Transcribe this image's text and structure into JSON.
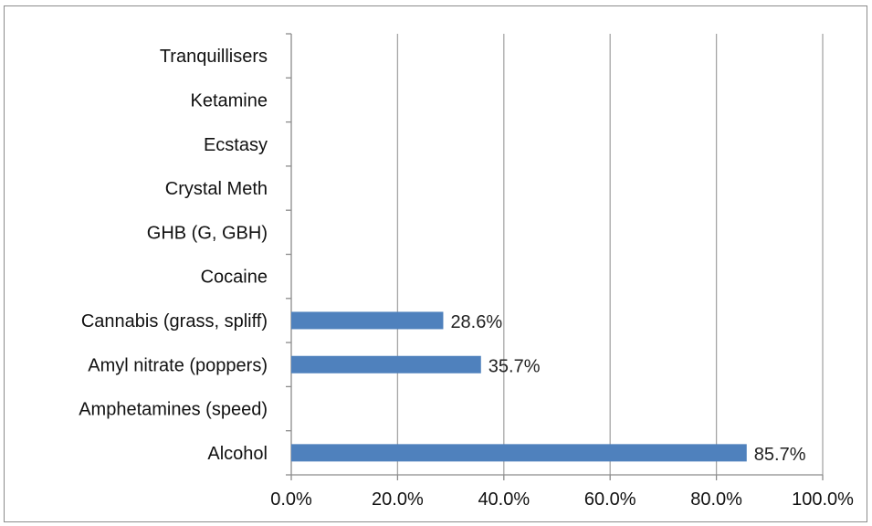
{
  "chart_data": {
    "type": "bar",
    "orientation": "horizontal",
    "categories": [
      "Alcohol",
      "Amphetamines (speed)",
      "Amyl nitrate (poppers)",
      "Cannabis (grass, spliff)",
      "Cocaine",
      "GHB (G, GBH)",
      "Crystal Meth",
      "Ecstasy",
      "Ketamine",
      "Tranquillisers"
    ],
    "values": [
      85.7,
      0,
      35.7,
      28.6,
      0,
      0,
      0,
      0,
      0,
      0
    ],
    "data_labels": [
      "85.7%",
      "",
      "35.7%",
      "28.6%",
      "",
      "",
      "",
      "",
      "",
      ""
    ],
    "x_ticks": [
      "0.0%",
      "20.0%",
      "40.0%",
      "60.0%",
      "80.0%",
      "100.0%"
    ],
    "xlim": [
      0,
      100
    ],
    "title": "",
    "xlabel": "",
    "ylabel": "",
    "grid": "vertical",
    "legend": "none",
    "colors": {
      "bar": "#4f81bd",
      "grid": "#a6a6a6",
      "axis": "#8c8c8c"
    }
  }
}
